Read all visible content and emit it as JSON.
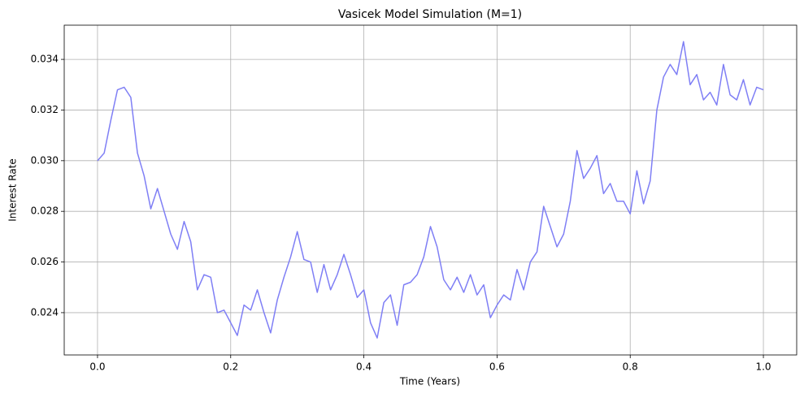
{
  "chart_data": {
    "type": "line",
    "title": "Vasicek Model Simulation (M=1)",
    "x_label": "Time (Years)",
    "y_label": "Interest Rate",
    "x": [
      0.0,
      0.01,
      0.02,
      0.03,
      0.04,
      0.05,
      0.06,
      0.07,
      0.08,
      0.09,
      0.1,
      0.11,
      0.12,
      0.13,
      0.14,
      0.15,
      0.16,
      0.17,
      0.18,
      0.19,
      0.2,
      0.21,
      0.22,
      0.23,
      0.24,
      0.25,
      0.26,
      0.27,
      0.28,
      0.29,
      0.3,
      0.31,
      0.32,
      0.33,
      0.34,
      0.35,
      0.36,
      0.37,
      0.38,
      0.39,
      0.4,
      0.41,
      0.42,
      0.43,
      0.44,
      0.45,
      0.46,
      0.47,
      0.48,
      0.49,
      0.5,
      0.51,
      0.52,
      0.53,
      0.54,
      0.55,
      0.56,
      0.57,
      0.58,
      0.59,
      0.6,
      0.61,
      0.62,
      0.63,
      0.64,
      0.65,
      0.66,
      0.67,
      0.68,
      0.69,
      0.7,
      0.71,
      0.72,
      0.73,
      0.74,
      0.75,
      0.76,
      0.77,
      0.78,
      0.79,
      0.8,
      0.81,
      0.82,
      0.83,
      0.84,
      0.85,
      0.86,
      0.87,
      0.88,
      0.89,
      0.9,
      0.91,
      0.92,
      0.93,
      0.94,
      0.95,
      0.96,
      0.97,
      0.98,
      0.99,
      1.0
    ],
    "series": [
      {
        "color": "#7f7ff5",
        "values": [
          0.03,
          0.0303,
          0.0316,
          0.0328,
          0.0329,
          0.0325,
          0.0303,
          0.0294,
          0.0281,
          0.0289,
          0.028,
          0.0271,
          0.0265,
          0.0276,
          0.0268,
          0.0249,
          0.0255,
          0.0254,
          0.024,
          0.0241,
          0.0236,
          0.0231,
          0.0243,
          0.0241,
          0.0249,
          0.024,
          0.0232,
          0.0245,
          0.0254,
          0.0262,
          0.0272,
          0.0261,
          0.026,
          0.0248,
          0.0259,
          0.0249,
          0.0255,
          0.0263,
          0.0255,
          0.0246,
          0.0249,
          0.0236,
          0.023,
          0.0244,
          0.0247,
          0.0235,
          0.0251,
          0.0252,
          0.0255,
          0.0262,
          0.0274,
          0.0266,
          0.0253,
          0.0249,
          0.0254,
          0.0248,
          0.0255,
          0.0247,
          0.0251,
          0.0238,
          0.0243,
          0.0247,
          0.0245,
          0.0257,
          0.0249,
          0.026,
          0.0264,
          0.0282,
          0.0274,
          0.0266,
          0.0271,
          0.0284,
          0.0304,
          0.0293,
          0.0297,
          0.0302,
          0.0287,
          0.0291,
          0.0284,
          0.0284,
          0.0279,
          0.0296,
          0.0283,
          0.0292,
          0.032,
          0.0333,
          0.0338,
          0.0334,
          0.0347,
          0.033,
          0.0334,
          0.0324,
          0.0327,
          0.0322,
          0.0338,
          0.0326,
          0.0324,
          0.0332,
          0.0322,
          0.0329,
          0.0328
        ]
      }
    ],
    "xlim": [
      -0.05,
      1.05
    ],
    "ylim": [
      0.02233,
      0.03535
    ],
    "xticks": [
      {
        "value": 0,
        "label": "0.0"
      },
      0.2,
      0.4,
      0.6,
      0.8,
      {
        "value": 1,
        "label": "1.0"
      }
    ],
    "yticks": [
      0.024,
      0.026,
      0.028,
      {
        "value": 0.03,
        "label": "0.030"
      },
      0.032,
      0.034
    ],
    "grid": true
  }
}
